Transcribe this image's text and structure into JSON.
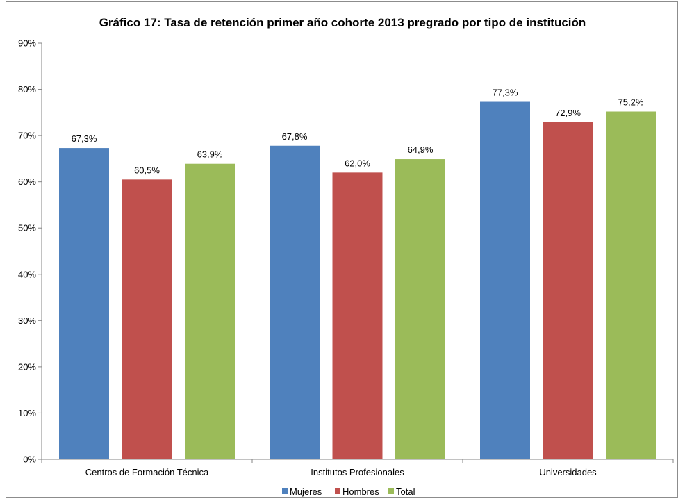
{
  "chart_data": {
    "type": "bar",
    "title": "Gráfico 17: Tasa de retención primer año cohorte 2013 pregrado por tipo de institución",
    "xlabel": "",
    "ylabel": "",
    "categories": [
      "Centros de Formación Técnica",
      "Institutos Profesionales",
      "Universidades"
    ],
    "series": [
      {
        "name": "Mujeres",
        "color": "#4f81bd",
        "values": [
          67.3,
          67.8,
          77.3
        ],
        "labels": [
          "67,3%",
          "67,8%",
          "77,3%"
        ]
      },
      {
        "name": "Hombres",
        "color": "#c0504d",
        "values": [
          60.5,
          62.0,
          72.9
        ],
        "labels": [
          "60,5%",
          "62,0%",
          "72,9%"
        ]
      },
      {
        "name": "Total",
        "color": "#9bbb59",
        "values": [
          63.9,
          64.9,
          75.2
        ],
        "labels": [
          "63,9%",
          "64,9%",
          "75,2%"
        ]
      }
    ],
    "ylim": [
      0,
      90
    ],
    "yticks": [
      0,
      10,
      20,
      30,
      40,
      50,
      60,
      70,
      80,
      90
    ],
    "ytick_labels": [
      "0%",
      "10%",
      "20%",
      "30%",
      "40%",
      "50%",
      "60%",
      "70%",
      "80%",
      "90%"
    ],
    "grid": false,
    "legend_position": "bottom-center"
  }
}
